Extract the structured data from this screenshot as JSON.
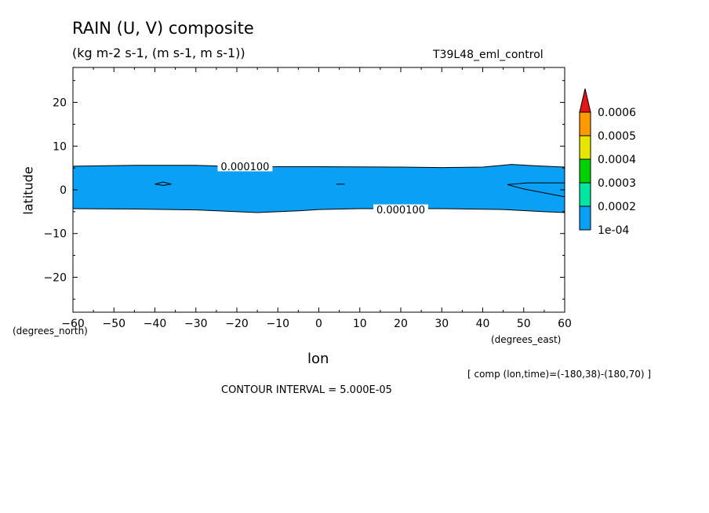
{
  "chart_data": {
    "type": "contour",
    "title": "RAIN (U, V) composite",
    "subtitle": "(kg m-2 s-1, (m s-1, m s-1))",
    "run_name": "T39L48_eml_control",
    "xlabel": "lon",
    "xunits": "(degrees_east)",
    "ylabel": "latitude",
    "yunits": "(degrees_north)",
    "xlim": [
      -60,
      60
    ],
    "ylim": [
      -28,
      28
    ],
    "x_ticks": [
      -60,
      -50,
      -40,
      -30,
      -20,
      -10,
      0,
      10,
      20,
      30,
      40,
      50,
      60
    ],
    "y_ticks": [
      -20,
      -10,
      0,
      10,
      20
    ],
    "contour_label": "0.000100",
    "colorbar": {
      "levels": [
        "1e-04",
        "0.0002",
        "0.0003",
        "0.0004",
        "0.0005",
        "0.0006"
      ],
      "colors": [
        "#0aa0f5",
        "#00e6a0",
        "#00d200",
        "#e6e600",
        "#ff9b00",
        "#e61414"
      ]
    },
    "band_north_edge": [
      [
        -60,
        5.4
      ],
      [
        -45,
        5.6
      ],
      [
        -30,
        5.6
      ],
      [
        -20,
        5.3
      ],
      [
        0,
        5.3
      ],
      [
        20,
        5.2
      ],
      [
        30,
        5.1
      ],
      [
        40,
        5.2
      ],
      [
        47,
        5.8
      ],
      [
        53,
        5.5
      ],
      [
        60,
        5.2
      ]
    ],
    "band_south_edge": [
      [
        -60,
        -4.3
      ],
      [
        -45,
        -4.4
      ],
      [
        -30,
        -4.6
      ],
      [
        -15,
        -5.2
      ],
      [
        -5,
        -4.8
      ],
      [
        0,
        -4.5
      ],
      [
        10,
        -4.3
      ],
      [
        30,
        -4.3
      ],
      [
        45,
        -4.5
      ],
      [
        55,
        -5.0
      ],
      [
        60,
        -5.2
      ]
    ],
    "subtitle_comp": "[ comp (lon,time)=(-180,38)-(180,70) ]",
    "contour_interval": "CONTOUR INTERVAL = 5.000E-05"
  }
}
